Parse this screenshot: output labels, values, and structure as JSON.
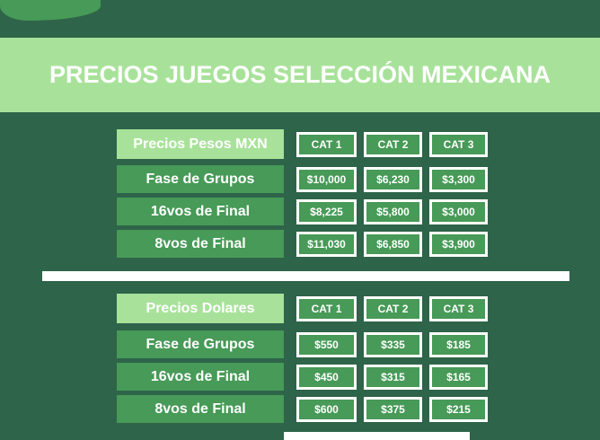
{
  "title": "PRECIOS JUEGOS SELECCIÓN MEXICANA",
  "colors": {
    "background": "#2e6449",
    "band": "#a8e29a",
    "cell": "#479a57",
    "text": "#ffffff"
  },
  "tables": [
    {
      "header": "Precios Pesos MXN",
      "categories": [
        "CAT 1",
        "CAT 2",
        "CAT 3"
      ],
      "rows": [
        {
          "label": "Fase de Grupos",
          "values": [
            "$10,000",
            "$6,230",
            "$3,300"
          ]
        },
        {
          "label": "16vos de Final",
          "values": [
            "$8,225",
            "$5,800",
            "$3,000"
          ]
        },
        {
          "label": "8vos de Final",
          "values": [
            "$11,030",
            "$6,850",
            "$3,900"
          ]
        }
      ]
    },
    {
      "header": "Precios Dolares",
      "categories": [
        "CAT 1",
        "CAT 2",
        "CAT 3"
      ],
      "rows": [
        {
          "label": "Fase de Grupos",
          "values": [
            "$550",
            "$335",
            "$185"
          ]
        },
        {
          "label": "16vos de Final",
          "values": [
            "$450",
            "$315",
            "$165"
          ]
        },
        {
          "label": "8vos de Final",
          "values": [
            "$600",
            "$375",
            "$215"
          ]
        }
      ]
    }
  ]
}
